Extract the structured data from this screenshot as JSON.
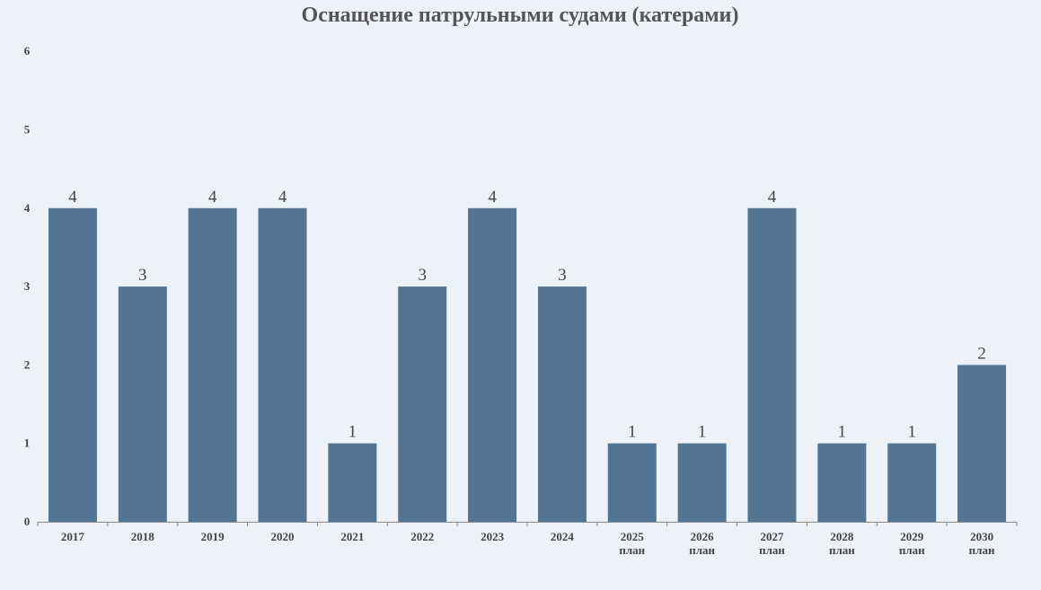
{
  "chart_data": {
    "type": "bar",
    "title": "Оснащение патрульными судами (катерами)",
    "xlabel": "",
    "ylabel": "",
    "ylim": [
      0,
      6
    ],
    "yticks": [
      0,
      1,
      2,
      3,
      4,
      5,
      6
    ],
    "grid": false,
    "legend": "none",
    "categories": [
      {
        "year": "2017",
        "sub": ""
      },
      {
        "year": "2018",
        "sub": ""
      },
      {
        "year": "2019",
        "sub": ""
      },
      {
        "year": "2020",
        "sub": ""
      },
      {
        "year": "2021",
        "sub": ""
      },
      {
        "year": "2022",
        "sub": ""
      },
      {
        "year": "2023",
        "sub": ""
      },
      {
        "year": "2024",
        "sub": ""
      },
      {
        "year": "2025",
        "sub": "план"
      },
      {
        "year": "2026",
        "sub": "план"
      },
      {
        "year": "2027",
        "sub": "план"
      },
      {
        "year": "2028",
        "sub": "план"
      },
      {
        "year": "2029",
        "sub": "план"
      },
      {
        "year": "2030",
        "sub": "план"
      }
    ],
    "values": [
      4,
      3,
      4,
      4,
      1,
      3,
      4,
      3,
      1,
      1,
      4,
      1,
      1,
      2
    ],
    "colors": {
      "bar": "#527594",
      "axis": "#8a8a8a",
      "text": "#444444",
      "title": "#555555"
    }
  }
}
